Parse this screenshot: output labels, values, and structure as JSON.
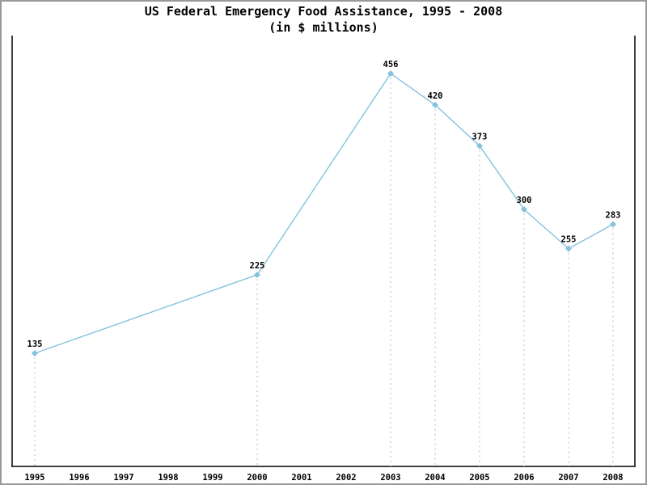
{
  "window": {
    "background_color": "#ffffff",
    "border_color": "#999999"
  },
  "chart_data": {
    "type": "line",
    "title": "US Federal Emergency Food Assistance, 1995 - 2008",
    "subtitle": "(in $ millions)",
    "xlabel": "",
    "ylabel": "",
    "x": [
      1995,
      2000,
      2003,
      2004,
      2005,
      2006,
      2007,
      2008
    ],
    "y": [
      135,
      225,
      456,
      420,
      373,
      300,
      255,
      283
    ],
    "point_labels": [
      "135",
      "225",
      "456",
      "420",
      "373",
      "300",
      "255",
      "283"
    ],
    "x_tick_labels": [
      "1995",
      "1996",
      "1997",
      "1998",
      "1999",
      "2000",
      "2001",
      "2002",
      "2003",
      "2004",
      "2005",
      "2006",
      "2007",
      "2008"
    ],
    "x_range": [
      1995,
      2008
    ],
    "ylim": [
      0,
      500
    ],
    "y_axis_ticks": "none",
    "grid": "off",
    "legend": "none",
    "marker": "diamond",
    "drop_lines": true,
    "colors": {
      "line": "#85c2dd",
      "marker": "#85c2dd",
      "drop_line": "#c8c8c8",
      "axis": "#000000",
      "label_text": "#000000"
    }
  }
}
